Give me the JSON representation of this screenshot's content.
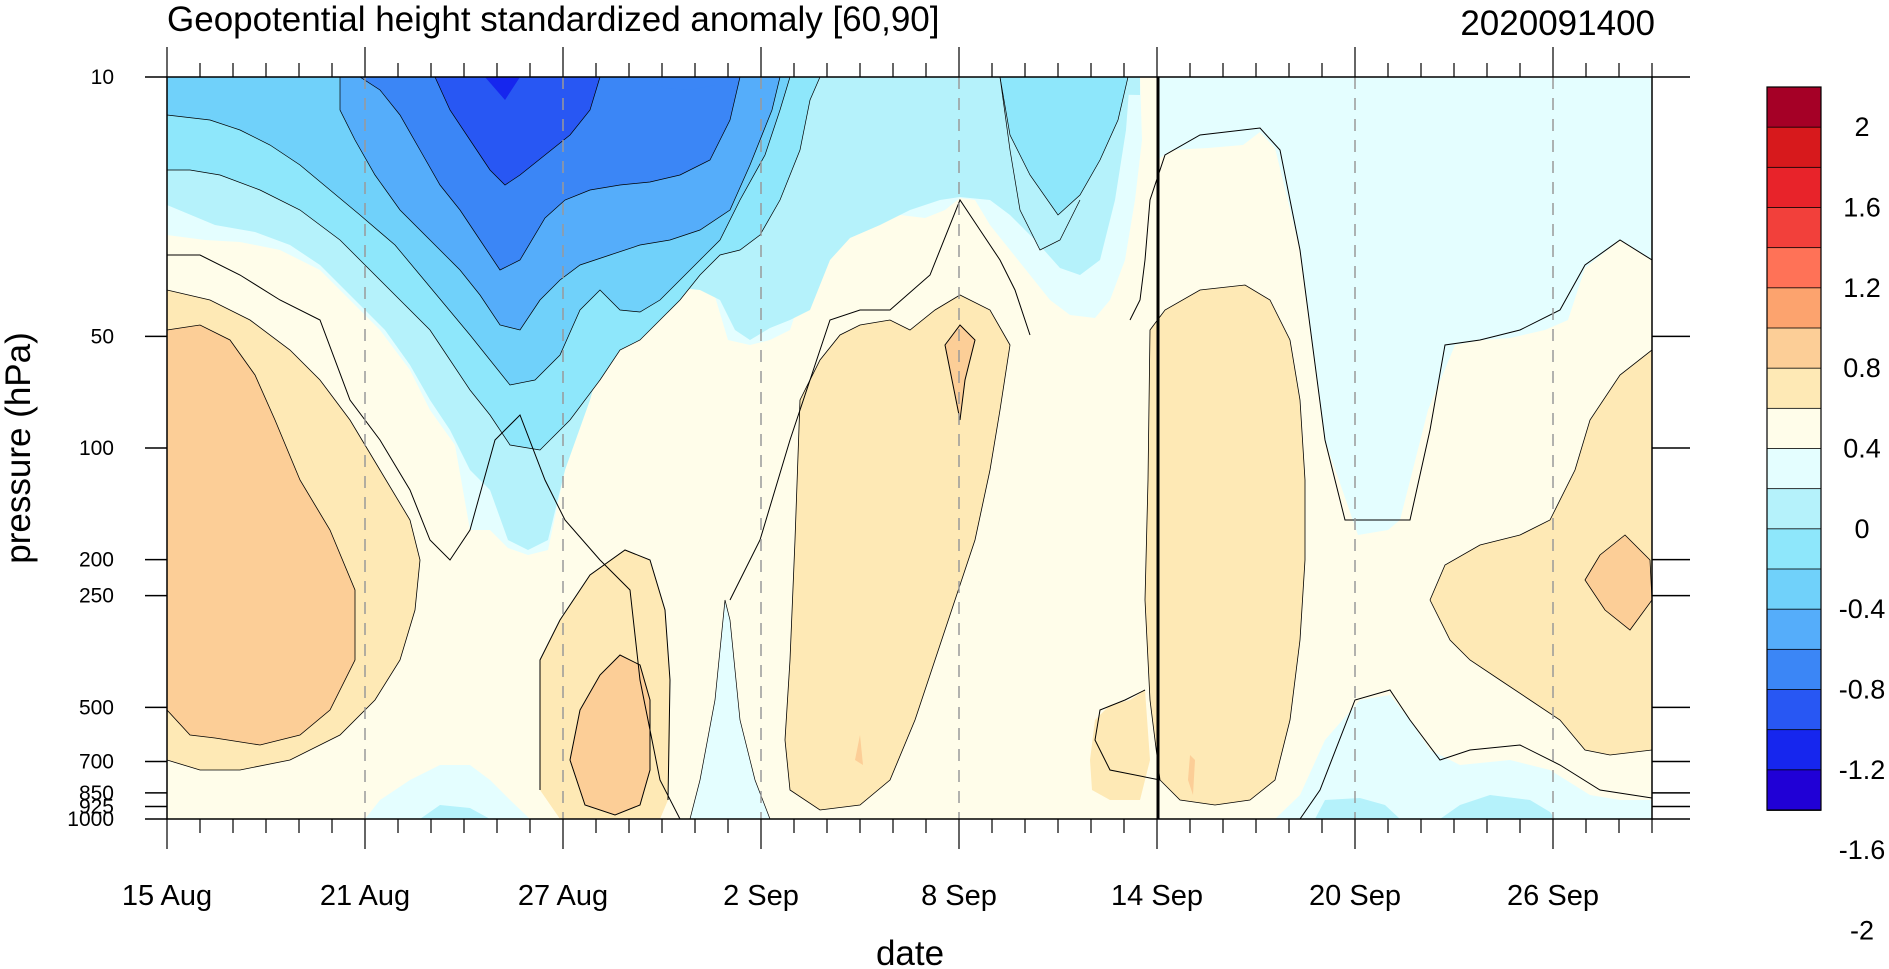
{
  "chart_data": {
    "type": "heatmap",
    "title": "Geopotential height standardized anomaly [60,90]",
    "title_right": "2020091400",
    "xlabel": "date",
    "ylabel": "pressure (hPa)",
    "x_ticks": [
      "15 Aug",
      "21 Aug",
      "27 Aug",
      "2 Sep",
      "8 Sep",
      "14 Sep",
      "20 Sep",
      "26 Sep"
    ],
    "y_ticks": [
      10,
      50,
      100,
      200,
      250,
      500,
      700,
      850,
      925,
      1000
    ],
    "y_tick_labels": [
      "10",
      "50",
      "100",
      "200",
      "250",
      "500",
      "700",
      "850",
      "925",
      "1000"
    ],
    "y_scale": "log",
    "ylim": [
      1000,
      10
    ],
    "x_days": [
      "15 Aug",
      "28 Sep"
    ],
    "marker_date": "14 Sep",
    "colorbar": {
      "labels": [
        "2",
        "1.6",
        "1.2",
        "0.8",
        "0.4",
        "0",
        "-0.4",
        "-0.8",
        "-1.2",
        "-1.6",
        "-2"
      ],
      "colors": [
        "#a50026",
        "#d7191c",
        "#e8232a",
        "#f2403b",
        "#ff7257",
        "#fca36e",
        "#fcce97",
        "#fee9b5",
        "#fffdea",
        "#e4feff",
        "#b5f2fb",
        "#8ee7fb",
        "#70d1fa",
        "#55adfa",
        "#3b86f6",
        "#2857f3",
        "#1626ee",
        "#2000d6"
      ]
    },
    "grid": "dashed vertical at date ticks",
    "legend": "colorbar right"
  }
}
